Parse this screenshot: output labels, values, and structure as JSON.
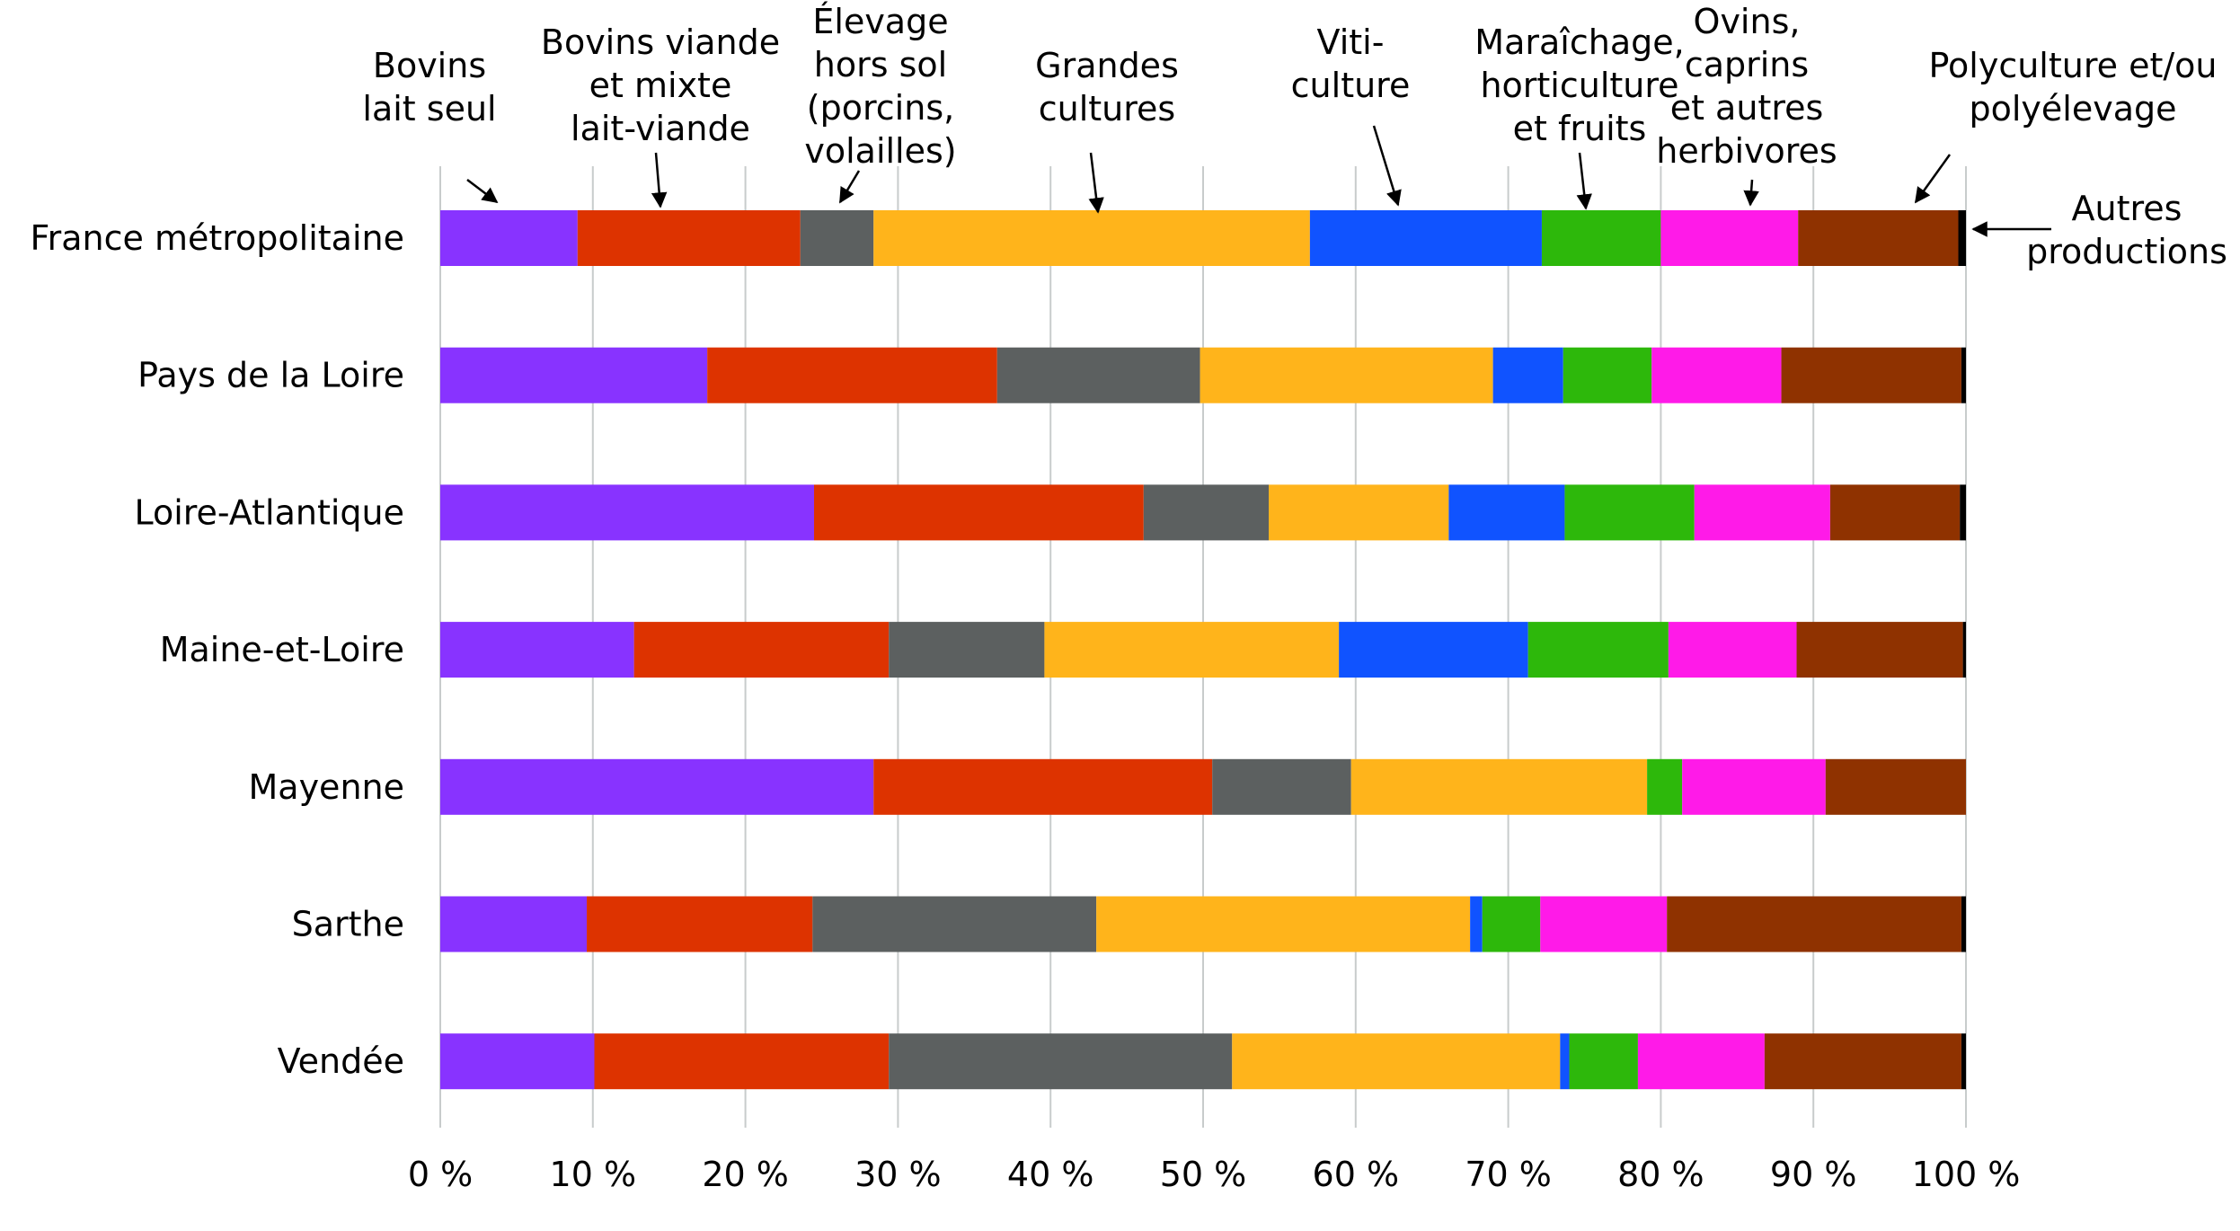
{
  "chart_data": {
    "type": "bar",
    "orientation": "horizontal",
    "stacked": true,
    "categories": [
      "France métropolitaine",
      "Pays de la Loire",
      "Loire-Atlantique",
      "Maine-et-Loire",
      "Mayenne",
      "Sarthe",
      "Vendée"
    ],
    "series": [
      {
        "name": "Bovins lait seul",
        "label_lines": [
          "Bovins",
          "lait seul"
        ],
        "color": "#8833ff",
        "values": [
          9.0,
          17.5,
          24.5,
          12.7,
          28.4,
          9.6,
          10.1
        ]
      },
      {
        "name": "Bovins viande et mixte lait-viande",
        "label_lines": [
          "Bovins viande",
          "et mixte",
          "lait-viande"
        ],
        "color": "#dd3300",
        "values": [
          14.6,
          19.0,
          21.6,
          16.7,
          22.2,
          14.8,
          19.3
        ]
      },
      {
        "name": "Élevage hors sol (porcins, volailles)",
        "label_lines": [
          "Élevage",
          "hors sol",
          "(porcins,",
          "volailles)"
        ],
        "color": "#5c6060",
        "values": [
          4.8,
          13.3,
          8.2,
          10.2,
          9.1,
          18.6,
          22.5
        ]
      },
      {
        "name": "Grandes cultures",
        "label_lines": [
          "Grandes",
          "cultures"
        ],
        "color": "#ffb41b",
        "values": [
          28.6,
          19.2,
          11.8,
          19.3,
          19.4,
          24.5,
          21.5
        ]
      },
      {
        "name": "Viticulture",
        "label_lines": [
          "Viti-",
          "culture"
        ],
        "color": "#1053ff",
        "values": [
          15.2,
          4.6,
          7.6,
          12.4,
          0.0,
          0.8,
          0.6
        ]
      },
      {
        "name": "Maraîchage, horticulture et fruits",
        "label_lines": [
          "Maraîchage,",
          "horticulture",
          "et fruits"
        ],
        "color": "#2db80b",
        "values": [
          7.8,
          5.8,
          8.5,
          9.2,
          2.3,
          3.8,
          4.5
        ]
      },
      {
        "name": "Ovins, caprins et autres herbivores",
        "label_lines": [
          "Ovins,",
          "caprins",
          "et autres",
          "herbivores"
        ],
        "color": "#ff1ae8",
        "values": [
          9.0,
          8.5,
          8.9,
          8.4,
          9.4,
          8.3,
          8.3
        ]
      },
      {
        "name": "Polyculture et/ou polyélevage",
        "label_lines": [
          "Polyculture et/ou",
          "polyélevage"
        ],
        "color": "#8f3200",
        "values": [
          10.5,
          11.8,
          8.5,
          10.9,
          9.2,
          19.3,
          12.9
        ]
      },
      {
        "name": "Autres productions",
        "label_lines": [
          "Autres",
          "productions"
        ],
        "color": "#000000",
        "values": [
          0.5,
          0.3,
          0.4,
          0.2,
          0.0,
          0.3,
          0.3
        ]
      }
    ],
    "x_ticks": [
      "0 %",
      "10 %",
      "20 %",
      "30 %",
      "40 %",
      "50 %",
      "60 %",
      "70 %",
      "80 %",
      "90 %",
      "100 %"
    ],
    "xlim": [
      0,
      100
    ],
    "grid": true,
    "legend": "annotations-above-top-bar"
  }
}
